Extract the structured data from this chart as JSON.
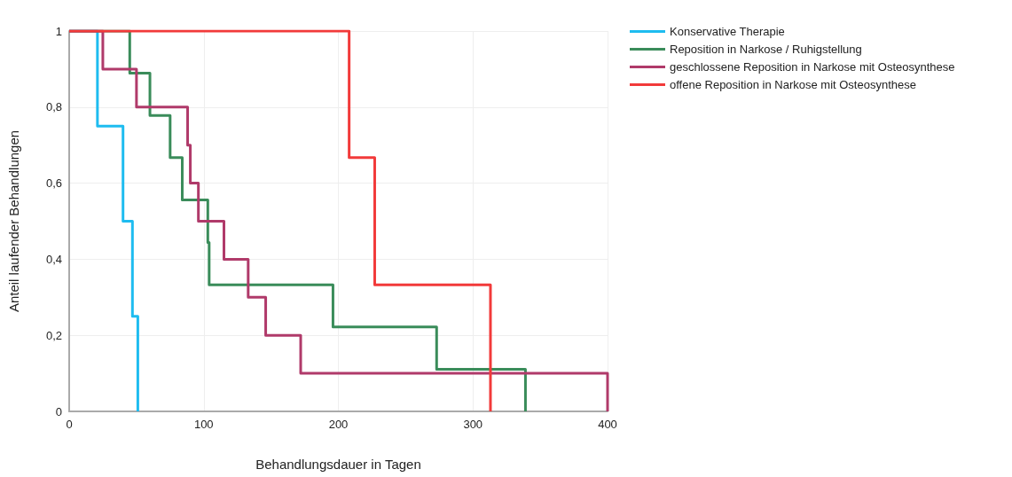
{
  "chart_data": {
    "type": "step",
    "xlabel": "Behandlungsdauer in Tagen",
    "ylabel": "Anteil laufender Behandlungen",
    "series": [
      {
        "name": "Konservative Therapie",
        "color": "#1ebcf0",
        "x": [
          0,
          21,
          40,
          47,
          51
        ],
        "values": [
          1,
          0.75,
          0.5,
          0.25,
          0
        ]
      },
      {
        "name": "Reposition in Narkose / Ruhigstellung",
        "color": "#3a8c5a",
        "x": [
          0,
          45,
          60,
          75,
          84,
          103,
          104,
          196,
          273,
          339
        ],
        "values": [
          1,
          0.889,
          0.778,
          0.667,
          0.556,
          0.444,
          0.333,
          0.222,
          0.111,
          0
        ]
      },
      {
        "name": "geschlossene Reposition in Narkose mit Osteosynthese",
        "color": "#b03a6a",
        "x": [
          0,
          25,
          50,
          88,
          90,
          96,
          115,
          133,
          146,
          172,
          400
        ],
        "values": [
          1,
          0.9,
          0.8,
          0.7,
          0.6,
          0.5,
          0.4,
          0.3,
          0.2,
          0.1,
          0
        ]
      },
      {
        "name": "offene Reposition in Narkose mit Osteosynthese",
        "color": "#f23a3a",
        "x": [
          0,
          208,
          227,
          313
        ],
        "values": [
          1,
          0.667,
          0.333,
          0
        ]
      }
    ],
    "xlim": [
      0,
      400
    ],
    "xticks": [
      0,
      100,
      200,
      300,
      400
    ],
    "ylim": [
      0,
      1
    ],
    "yticks": [
      0,
      {
        "value": 0.2,
        "label": "0,2"
      },
      {
        "value": 0.4,
        "label": "0,4"
      },
      {
        "value": 0.6,
        "label": "0,6"
      },
      {
        "value": 0.8,
        "label": "0,8"
      },
      1
    ],
    "grid": true,
    "legend": "top right",
    "marker": "none",
    "line_style": "solid"
  }
}
